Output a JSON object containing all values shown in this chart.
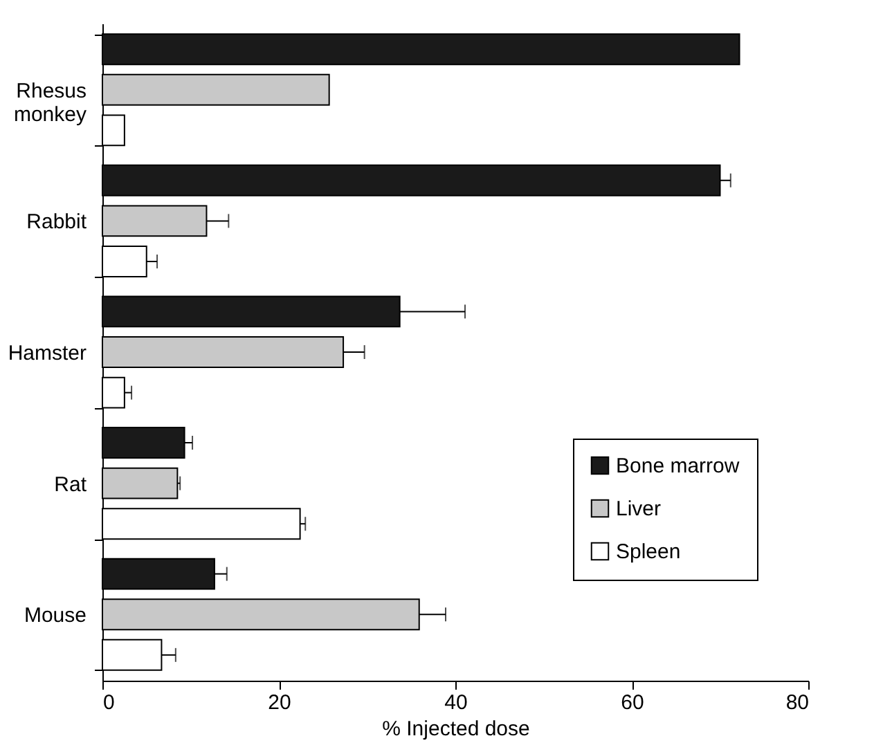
{
  "chart_data": {
    "type": "bar",
    "orientation": "horizontal",
    "xlabel": "% Injected dose",
    "categories": [
      "Rhesus monkey",
      "Rabbit",
      "Hamster",
      "Rat",
      "Mouse"
    ],
    "series": [
      {
        "name": "Bone marrow",
        "color": "#1a1a1a",
        "values": [
          72.2,
          70.0,
          33.7,
          9.3,
          12.7
        ],
        "errors": [
          null,
          [
            70.0,
            71.2
          ],
          [
            33.7,
            41.1
          ],
          [
            9.3,
            10.2
          ],
          [
            12.7,
            14.1
          ]
        ]
      },
      {
        "name": "Liver",
        "color": "#c8c8c8",
        "values": [
          25.7,
          11.8,
          27.3,
          8.5,
          35.9
        ],
        "errors": [
          null,
          [
            11.8,
            14.3
          ],
          [
            27.3,
            29.7
          ],
          [
            8.5,
            8.8
          ],
          [
            35.9,
            38.9
          ]
        ]
      },
      {
        "name": "Spleen",
        "color": "#ffffff",
        "values": [
          2.5,
          5.0,
          2.5,
          22.4,
          6.7
        ],
        "errors": [
          null,
          [
            5.0,
            6.2
          ],
          [
            2.5,
            3.3
          ],
          [
            22.4,
            23.0
          ],
          [
            6.7,
            8.3
          ]
        ]
      }
    ],
    "xlim": [
      0,
      80
    ],
    "xticks": [
      0,
      20,
      40,
      60,
      80
    ],
    "grid": false,
    "legend": "right"
  }
}
